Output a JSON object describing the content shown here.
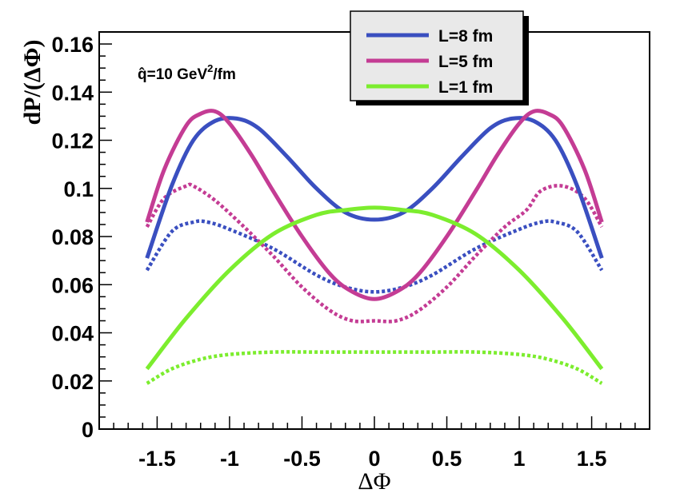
{
  "chart_data": {
    "type": "line",
    "title": "",
    "xlabel": "ΔΦ",
    "ylabel": "dP/(ΔΦ)",
    "xlim": [
      -1.9,
      1.9
    ],
    "ylim": [
      0,
      0.165
    ],
    "grid": false,
    "legend_position": "top-right",
    "annotation": {
      "text_parts": [
        "q̂=10 GeV",
        "2",
        "/fm"
      ]
    },
    "x_ticks": [
      {
        "value": -1.5,
        "label": "-1.5"
      },
      {
        "value": -1,
        "label": "-1"
      },
      {
        "value": -0.5,
        "label": "-0.5"
      },
      {
        "value": 0,
        "label": "0"
      },
      {
        "value": 0.5,
        "label": "0.5"
      },
      {
        "value": 1,
        "label": "1"
      },
      {
        "value": 1.5,
        "label": "1.5"
      }
    ],
    "y_ticks": [
      {
        "value": 0,
        "label": "0"
      },
      {
        "value": 0.02,
        "label": "0.02"
      },
      {
        "value": 0.04,
        "label": "0.04"
      },
      {
        "value": 0.06,
        "label": "0.06"
      },
      {
        "value": 0.08,
        "label": "0.08"
      },
      {
        "value": 0.1,
        "label": "0.1"
      },
      {
        "value": 0.12,
        "label": "0.12"
      },
      {
        "value": 0.14,
        "label": "0.14"
      },
      {
        "value": 0.16,
        "label": "0.16"
      }
    ],
    "series": [
      {
        "name": "L=8 fm",
        "color": "#3a4fc0",
        "style": "solid",
        "in_legend": true,
        "x": [
          -1.57,
          -1.4,
          -1.25,
          -1.1,
          -0.95,
          -0.8,
          -0.6,
          -0.4,
          -0.2,
          0,
          0.2,
          0.4,
          0.6,
          0.8,
          0.95,
          1.1,
          1.25,
          1.4,
          1.57
        ],
        "y": [
          0.071,
          0.101,
          0.12,
          0.128,
          0.129,
          0.125,
          0.113,
          0.1,
          0.09,
          0.087,
          0.09,
          0.1,
          0.113,
          0.125,
          0.129,
          0.128,
          0.12,
          0.101,
          0.071
        ]
      },
      {
        "name": "L=5 fm",
        "color": "#c43c94",
        "style": "solid",
        "in_legend": true,
        "x": [
          -1.57,
          -1.45,
          -1.3,
          -1.2,
          -1.1,
          -1.0,
          -0.85,
          -0.7,
          -0.5,
          -0.3,
          -0.15,
          0,
          0.15,
          0.3,
          0.5,
          0.7,
          0.85,
          1.0,
          1.1,
          1.2,
          1.3,
          1.45,
          1.57
        ],
        "y": [
          0.086,
          0.108,
          0.126,
          0.131,
          0.132,
          0.127,
          0.114,
          0.099,
          0.08,
          0.064,
          0.057,
          0.054,
          0.057,
          0.064,
          0.08,
          0.099,
          0.114,
          0.127,
          0.132,
          0.131,
          0.126,
          0.108,
          0.086
        ]
      },
      {
        "name": "L=1 fm",
        "color": "#7ced2e",
        "style": "solid",
        "in_legend": true,
        "x": [
          -1.57,
          -1.3,
          -1.0,
          -0.7,
          -0.4,
          -0.2,
          0,
          0.2,
          0.4,
          0.7,
          1.0,
          1.3,
          1.57
        ],
        "y": [
          0.025,
          0.046,
          0.066,
          0.081,
          0.089,
          0.091,
          0.092,
          0.091,
          0.089,
          0.081,
          0.066,
          0.046,
          0.025
        ]
      },
      {
        "name": "L=8 fm (dotted)",
        "color": "#3a4fc0",
        "style": "dotted",
        "in_legend": false,
        "x": [
          -1.57,
          -1.4,
          -1.25,
          -1.15,
          -1.0,
          -0.7,
          -0.4,
          -0.2,
          0,
          0.2,
          0.4,
          0.7,
          1.0,
          1.15,
          1.25,
          1.4,
          1.57
        ],
        "y": [
          0.066,
          0.082,
          0.086,
          0.086,
          0.083,
          0.075,
          0.064,
          0.059,
          0.057,
          0.059,
          0.064,
          0.075,
          0.083,
          0.086,
          0.086,
          0.082,
          0.066
        ]
      },
      {
        "name": "L=5 fm (dotted)",
        "color": "#c43c94",
        "style": "dotted",
        "in_legend": false,
        "x": [
          -1.57,
          -1.45,
          -1.3,
          -1.25,
          -1.1,
          -0.9,
          -0.7,
          -0.5,
          -0.3,
          -0.15,
          0,
          0.15,
          0.3,
          0.5,
          0.7,
          0.9,
          1.05,
          1.15,
          1.3,
          1.45,
          1.57
        ],
        "y": [
          0.084,
          0.096,
          0.101,
          0.101,
          0.095,
          0.084,
          0.072,
          0.059,
          0.049,
          0.045,
          0.045,
          0.045,
          0.049,
          0.059,
          0.072,
          0.084,
          0.091,
          0.099,
          0.101,
          0.096,
          0.084
        ]
      },
      {
        "name": "L=1 fm (dotted)",
        "color": "#7ced2e",
        "style": "dotted",
        "in_legend": false,
        "x": [
          -1.57,
          -1.4,
          -1.2,
          -1.0,
          -0.7,
          -0.4,
          0,
          0.4,
          0.7,
          1.0,
          1.2,
          1.4,
          1.57
        ],
        "y": [
          0.019,
          0.025,
          0.029,
          0.031,
          0.032,
          0.032,
          0.032,
          0.032,
          0.032,
          0.031,
          0.029,
          0.025,
          0.019
        ]
      }
    ]
  }
}
